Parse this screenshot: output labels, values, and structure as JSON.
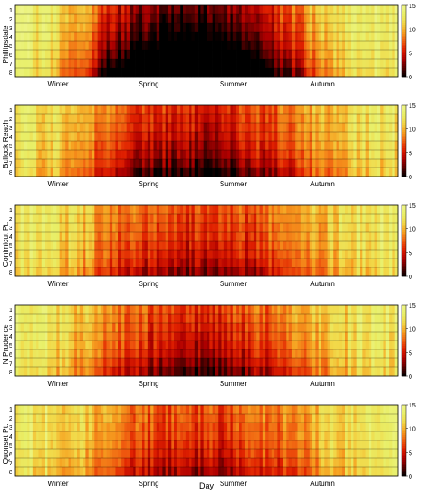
{
  "chart_data": [
    {
      "type": "heatmap",
      "station": "Phillipsdale",
      "rows": [
        "1",
        "2",
        "3",
        "4",
        "5",
        "6",
        "7",
        "8"
      ],
      "season_labels": [
        "Winter",
        "Spring",
        "Summer",
        "Autumn"
      ],
      "colorbar_ticks": [
        0,
        5,
        10,
        15
      ],
      "zlim": [
        0,
        15
      ],
      "row_profile": [
        0.0,
        0.06,
        0.12,
        0.19,
        0.28,
        0.38,
        0.52,
        0.7
      ],
      "season_mean": [
        13.5,
        12.6,
        10.0,
        5.2,
        3.1,
        1.6,
        1.2,
        3.0,
        6.0,
        8.6,
        11.5,
        13.4,
        13.6
      ],
      "notes": "Lowest values (near 0) in deep rows during summer; light bands (~15) near day 330-360"
    },
    {
      "type": "heatmap",
      "station": "Bullock Reach",
      "rows": [
        "1",
        "2",
        "3",
        "4",
        "5",
        "6",
        "7",
        "8"
      ],
      "season_labels": [
        "Winter",
        "Spring",
        "Summer",
        "Autumn"
      ],
      "colorbar_ticks": [
        0,
        5,
        10,
        15
      ],
      "zlim": [
        0,
        15
      ],
      "row_profile": [
        0.0,
        0.05,
        0.1,
        0.15,
        0.22,
        0.3,
        0.42,
        0.58
      ],
      "season_mean": [
        12.5,
        12.2,
        10.5,
        8.2,
        6.6,
        5.8,
        5.6,
        6.2,
        7.6,
        9.2,
        11.0,
        12.2,
        12.5
      ]
    },
    {
      "type": "heatmap",
      "station": "Conimicut Pt.",
      "rows": [
        "1",
        "2",
        "3",
        "4",
        "5",
        "6",
        "7",
        "8"
      ],
      "season_labels": [
        "Winter",
        "Spring",
        "Summer",
        "Autumn"
      ],
      "colorbar_ticks": [
        0,
        5,
        10,
        15
      ],
      "zlim": [
        0,
        15
      ],
      "row_profile": [
        0.0,
        0.04,
        0.08,
        0.12,
        0.18,
        0.25,
        0.35,
        0.5
      ],
      "season_mean": [
        12.8,
        12.4,
        10.8,
        8.8,
        7.4,
        6.8,
        6.6,
        7.0,
        8.2,
        9.6,
        11.2,
        12.4,
        12.8
      ]
    },
    {
      "type": "heatmap",
      "station": "N Prudence",
      "rows": [
        "1",
        "2",
        "3",
        "4",
        "5",
        "6",
        "7",
        "8"
      ],
      "season_labels": [
        "Winter",
        "Spring",
        "Summer",
        "Autumn"
      ],
      "colorbar_ticks": [
        0,
        5,
        10,
        15
      ],
      "zlim": [
        0,
        15
      ],
      "row_profile": [
        0.0,
        0.04,
        0.09,
        0.14,
        0.2,
        0.28,
        0.4,
        0.55
      ],
      "season_mean": [
        12.9,
        12.5,
        11.0,
        8.9,
        7.4,
        6.4,
        6.0,
        6.6,
        8.0,
        9.6,
        11.2,
        12.5,
        12.9
      ]
    },
    {
      "type": "heatmap",
      "station": "Quonset Pt.",
      "rows": [
        "1",
        "2",
        "3",
        "4",
        "5",
        "6",
        "7",
        "8"
      ],
      "season_labels": [
        "Winter",
        "Spring",
        "Summer",
        "Autumn"
      ],
      "colorbar_ticks": [
        0,
        5,
        10,
        15
      ],
      "zlim": [
        0,
        15
      ],
      "row_profile": [
        0.0,
        0.04,
        0.08,
        0.12,
        0.18,
        0.24,
        0.34,
        0.46
      ],
      "season_mean": [
        13.0,
        12.6,
        11.2,
        9.2,
        7.8,
        7.0,
        6.8,
        7.2,
        8.4,
        9.8,
        11.4,
        12.6,
        13.0
      ]
    }
  ],
  "xlabel": "Day",
  "colormap": [
    "#000000",
    "#5a0000",
    "#b00000",
    "#e02000",
    "#f06010",
    "#f6a020",
    "#f2d848",
    "#e8ef68",
    "#eef58a"
  ]
}
